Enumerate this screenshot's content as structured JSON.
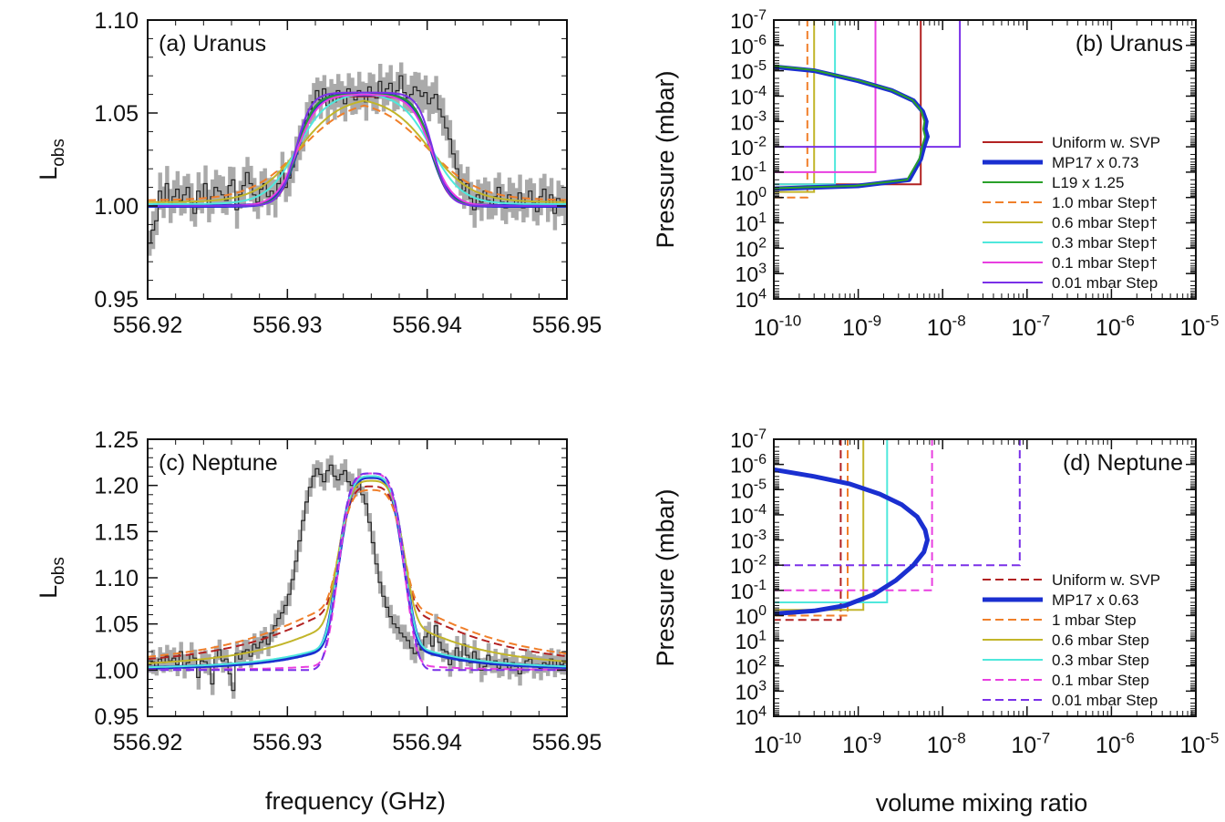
{
  "figure": {
    "xlabel_left": "frequency (GHz)",
    "xlabel_right": "volume mixing ratio"
  },
  "colors": {
    "uniform": "#b22222",
    "mp17": "#1a2fd0",
    "l19": "#2aa02a",
    "step1": "#f07f2a",
    "step06": "#c2b52a",
    "step03": "#4fe8dc",
    "step01": "#e83fe0",
    "step001": "#7a30e8",
    "data": "#aaaaaa",
    "navy": "#101050"
  },
  "chart_data": [
    {
      "id": "a",
      "type": "line",
      "label": "(a) Uranus",
      "ylabel": "L",
      "ylabel_sub": "obs",
      "xlim": [
        556.92,
        556.95
      ],
      "ylim": [
        0.95,
        1.1
      ],
      "xticks": [
        556.92,
        556.93,
        556.94,
        556.95
      ],
      "xtick_labels": [
        "556.92",
        "556.93",
        "556.94",
        "556.95"
      ],
      "yticks": [
        0.95,
        1.0,
        1.05,
        1.1
      ],
      "ytick_labels": [
        "0.95",
        "1.00",
        "1.05",
        "1.10"
      ],
      "data_style": "histogram with grey error bars",
      "center": 556.9355,
      "models": [
        {
          "key": "uniform",
          "color": "#b22222",
          "dash": false,
          "width": 2,
          "peak": 1.059,
          "base": 1.0,
          "halfwidth": 0.0048,
          "sharp": 0.0006
        },
        {
          "key": "mp17",
          "color": "#1a2fd0",
          "dash": false,
          "width": 4,
          "peak": 1.06,
          "base": 1.0,
          "halfwidth": 0.0048,
          "sharp": 0.00065
        },
        {
          "key": "l19",
          "color": "#2aa02a",
          "dash": false,
          "width": 2,
          "peak": 1.06,
          "base": 1.0,
          "halfwidth": 0.0048,
          "sharp": 0.00062
        },
        {
          "key": "step1",
          "color": "#f07f2a",
          "dash": true,
          "width": 2,
          "peak": 1.058,
          "base": 1.003,
          "halfwidth": 0.0046,
          "sharp": 0.0018
        },
        {
          "key": "step06",
          "color": "#c2b52a",
          "dash": false,
          "width": 2,
          "peak": 1.059,
          "base": 1.002,
          "halfwidth": 0.0047,
          "sharp": 0.0015
        },
        {
          "key": "step03",
          "color": "#4fe8dc",
          "dash": false,
          "width": 2,
          "peak": 1.061,
          "base": 1.001,
          "halfwidth": 0.0048,
          "sharp": 0.0011
        },
        {
          "key": "step01",
          "color": "#e83fe0",
          "dash": false,
          "width": 2,
          "peak": 1.06,
          "base": 1.0,
          "halfwidth": 0.0048,
          "sharp": 0.00075
        },
        {
          "key": "step001",
          "color": "#7a30e8",
          "dash": false,
          "width": 2,
          "peak": 1.061,
          "base": 1.0,
          "halfwidth": 0.0049,
          "sharp": 0.00055
        }
      ],
      "observed": {
        "x_start": 556.92,
        "step": 0.00025,
        "y": [
          0.98,
          0.987,
          0.992,
          1.008,
          1.002,
          1.012,
          1.0,
          1.005,
          1.009,
          1.003,
          1.006,
          1.01,
          1.002,
          0.996,
          1.008,
          1.004,
          1.012,
          1.0,
          1.005,
          1.01,
          1.008,
          1.006,
          1.003,
          1.011,
          1.014,
          0.998,
          1.006,
          1.011,
          1.018,
          1.012,
          1.006,
          1.002,
          1.009,
          1.012,
          1.005,
          1.008,
          1.004,
          1.012,
          1.019,
          1.01,
          1.015,
          1.021,
          1.028,
          1.034,
          1.038,
          1.046,
          1.052,
          1.056,
          1.062,
          1.057,
          1.063,
          1.054,
          1.06,
          1.056,
          1.062,
          1.058,
          1.055,
          1.063,
          1.059,
          1.057,
          1.062,
          1.06,
          1.056,
          1.064,
          1.061,
          1.058,
          1.067,
          1.06,
          1.063,
          1.066,
          1.059,
          1.062,
          1.07,
          1.061,
          1.058,
          1.06,
          1.064,
          1.062,
          1.059,
          1.061,
          1.055,
          1.058,
          1.06,
          1.052,
          1.048,
          1.042,
          1.036,
          1.028,
          1.02,
          1.014,
          1.008,
          1.012,
          1.004,
          0.998,
          1.006,
          1.002,
          1.008,
          1.003,
          1.0,
          1.005,
          1.01,
          1.002,
          0.999,
          1.006,
          1.003,
          1.001,
          1.007,
          0.999,
          1.004,
          1.008,
          1.002,
          0.997,
          1.005,
          1.009,
          1.001,
          1.006,
          0.996,
          1.004,
          1.003,
          1.0,
          1.006
        ]
      }
    },
    {
      "id": "b",
      "type": "line",
      "label": "(b) Uranus",
      "ylabel": "Pressure (mbar)",
      "xlog": true,
      "ylog": true,
      "yreverse": true,
      "xlim": [
        1e-10,
        1e-05
      ],
      "ylim": [
        1e-07,
        10000.0
      ],
      "xtick_exponents": [
        "-10",
        "-9",
        "-8",
        "-7",
        "-6",
        "-5"
      ],
      "ytick_exponents": [
        "-7",
        "-6",
        "-5",
        "-4",
        "-3",
        "-2",
        "-1",
        "0",
        "1",
        "2",
        "3",
        "4"
      ],
      "legend_position": "lower-right",
      "legend": [
        {
          "key": "uniform",
          "label": "Uniform w. SVP",
          "color": "#b22222",
          "dash": false,
          "width": 2
        },
        {
          "key": "mp17",
          "label": "MP17 x 0.73",
          "color": "#1a2fd0",
          "dash": false,
          "width": 5
        },
        {
          "key": "l19",
          "label": "L19 x 1.25",
          "color": "#2aa02a",
          "dash": false,
          "width": 2
        },
        {
          "key": "step1",
          "label": "1.0 mbar Step†",
          "color": "#f07f2a",
          "dash": true,
          "width": 2
        },
        {
          "key": "step06",
          "label": "0.6 mbar Step†",
          "color": "#c2b52a",
          "dash": false,
          "width": 2
        },
        {
          "key": "step03",
          "label": "0.3 mbar Step†",
          "color": "#4fe8dc",
          "dash": false,
          "width": 2
        },
        {
          "key": "step01",
          "label": "0.1 mbar Step†",
          "color": "#e83fe0",
          "dash": false,
          "width": 2
        },
        {
          "key": "step001",
          "label": "0.01 mbar Step",
          "color": "#7a30e8",
          "dash": false,
          "width": 2
        }
      ],
      "steps": [
        {
          "key": "uniform",
          "color": "#b22222",
          "dash": false,
          "vmr": 5.5e-09,
          "p": 0.3
        },
        {
          "key": "step1",
          "color": "#f07f2a",
          "dash": true,
          "vmr": 2.5e-10,
          "p": 1.0
        },
        {
          "key": "step06",
          "color": "#c2b52a",
          "dash": false,
          "vmr": 3e-10,
          "p": 0.6
        },
        {
          "key": "step03",
          "color": "#4fe8dc",
          "dash": false,
          "vmr": 5.3e-10,
          "p": 0.3
        },
        {
          "key": "step01",
          "color": "#e83fe0",
          "dash": false,
          "vmr": 1.6e-09,
          "p": 0.1
        },
        {
          "key": "step001",
          "color": "#7a30e8",
          "dash": false,
          "vmr": 1.6e-08,
          "p": 0.01
        }
      ],
      "profiles": [
        {
          "key": "mp17",
          "color": "#1a2fd0",
          "width": 5,
          "dash": false,
          "vmr": [
            1e-10,
            3e-10,
            1e-09,
            2.5e-09,
            4.5e-09,
            5.8e-09,
            6.4e-09,
            6.2e-09,
            6.6e-09,
            6e-09,
            5.5e-09,
            4e-09,
            1e-09,
            1e-10
          ],
          "p": [
            7e-06,
            1e-05,
            2.5e-05,
            6e-05,
            0.00015,
            0.0004,
            0.001,
            0.002,
            0.004,
            0.01,
            0.03,
            0.2,
            0.35,
            0.45
          ]
        },
        {
          "key": "l19",
          "color": "#2aa02a",
          "width": 2,
          "dash": false,
          "vmr": [
            1e-10,
            3e-10,
            1e-09,
            2.5e-09,
            4.4e-09,
            5.6e-09,
            6.1e-09,
            5.9e-09,
            6.2e-09,
            5.7e-09,
            5.3e-09,
            3.8e-09,
            9e-10,
            1e-10
          ],
          "p": [
            6.5e-06,
            9.5e-06,
            2.4e-05,
            5.8e-05,
            0.000145,
            0.00039,
            0.001,
            0.002,
            0.004,
            0.01,
            0.03,
            0.2,
            0.35,
            0.43
          ]
        }
      ]
    },
    {
      "id": "c",
      "type": "line",
      "label": "(c) Neptune",
      "ylabel": "L",
      "ylabel_sub": "obs",
      "xlim": [
        556.92,
        556.95
      ],
      "ylim": [
        0.95,
        1.25
      ],
      "xticks": [
        556.92,
        556.93,
        556.94,
        556.95
      ],
      "xtick_labels": [
        "556.92",
        "556.93",
        "556.94",
        "556.95"
      ],
      "yticks": [
        0.95,
        1.0,
        1.05,
        1.1,
        1.15,
        1.2,
        1.25
      ],
      "ytick_labels": [
        "0.95",
        "1.00",
        "1.05",
        "1.10",
        "1.15",
        "1.20",
        "1.25"
      ],
      "data_style": "histogram with grey error bars",
      "center": 556.936,
      "models": [
        {
          "key": "uniform",
          "color": "#b22222",
          "dash": true,
          "width": 2,
          "peak": 1.199,
          "base": 1.0,
          "gw": 0.0025,
          "lw": 0.007,
          "lamp": 0.075
        },
        {
          "key": "mp17",
          "color": "#1a2fd0",
          "dash": false,
          "width": 4,
          "peak": 1.209,
          "base": 1.0,
          "gw": 0.0026,
          "lw": 0.0045,
          "lamp": 0.035
        },
        {
          "key": "step1",
          "color": "#f07f2a",
          "dash": true,
          "width": 2,
          "peak": 1.195,
          "base": 1.0,
          "gw": 0.0025,
          "lw": 0.0075,
          "lamp": 0.08
        },
        {
          "key": "step06",
          "color": "#c2b52a",
          "dash": false,
          "width": 2,
          "peak": 1.205,
          "base": 1.0,
          "gw": 0.0026,
          "lw": 0.006,
          "lamp": 0.06
        },
        {
          "key": "step03",
          "color": "#4fe8dc",
          "dash": false,
          "width": 2,
          "peak": 1.21,
          "base": 1.0,
          "gw": 0.0026,
          "lw": 0.005,
          "lamp": 0.035
        },
        {
          "key": "step01",
          "color": "#e83fe0",
          "dash": true,
          "width": 2,
          "peak": 1.213,
          "base": 1.0,
          "gw": 0.0026,
          "lw": 0.003,
          "lamp": 0.012
        },
        {
          "key": "step001",
          "color": "#7a30e8",
          "dash": true,
          "width": 2,
          "peak": 1.213,
          "base": 1.0,
          "gw": 0.0027,
          "lw": 0.002,
          "lamp": 0.0
        }
      ],
      "observed": {
        "x_start": 556.92,
        "step": 0.00025,
        "y": [
          1.006,
          1.009,
          1.004,
          1.012,
          1.008,
          1.015,
          1.01,
          1.013,
          1.006,
          1.02,
          1.004,
          1.008,
          1.017,
          1.013,
          0.992,
          1.01,
          1.009,
          1.006,
          0.985,
          1.014,
          1.022,
          1.01,
          1.012,
          0.996,
          0.978,
          1.018,
          1.012,
          1.02,
          1.022,
          1.015,
          1.028,
          1.024,
          1.03,
          1.036,
          1.028,
          1.04,
          1.048,
          1.056,
          1.062,
          1.07,
          1.082,
          1.098,
          1.118,
          1.14,
          1.162,
          1.182,
          1.198,
          1.21,
          1.218,
          1.212,
          1.204,
          1.216,
          1.222,
          1.21,
          1.206,
          1.212,
          1.216,
          1.204,
          1.2,
          1.198,
          1.205,
          1.19,
          1.18,
          1.16,
          1.138,
          1.115,
          1.095,
          1.08,
          1.068,
          1.058,
          1.05,
          1.046,
          1.04,
          1.036,
          1.032,
          1.024,
          1.018,
          1.028,
          1.022,
          1.036,
          1.04,
          1.026,
          1.048,
          1.03,
          1.022,
          1.02,
          1.006,
          1.012,
          1.024,
          1.01,
          1.028,
          1.016,
          1.008,
          1.02,
          1.012,
          1.0,
          1.004,
          1.016,
          1.006,
          1.01,
          1.002,
          1.006,
          1.012,
          1.002,
          1.008,
          1.004,
          0.996,
          1.006,
          1.01,
          1.012,
          1.004,
          1.006,
          1.002,
          1.008,
          1.006,
          1.012,
          1.004,
          1.01,
          1.006,
          1.008,
          1.004
        ]
      }
    },
    {
      "id": "d",
      "type": "line",
      "label": "(d) Neptune",
      "ylabel": "Pressure (mbar)",
      "xlog": true,
      "ylog": true,
      "yreverse": true,
      "xlim": [
        1e-10,
        1e-05
      ],
      "ylim": [
        1e-07,
        10000.0
      ],
      "xtick_exponents": [
        "-10",
        "-9",
        "-8",
        "-7",
        "-6",
        "-5"
      ],
      "ytick_exponents": [
        "-7",
        "-6",
        "-5",
        "-4",
        "-3",
        "-2",
        "-1",
        "0",
        "1",
        "2",
        "3",
        "4"
      ],
      "legend_position": "lower-right",
      "legend": [
        {
          "key": "uniform",
          "label": "Uniform w. SVP",
          "color": "#b22222",
          "dash": true,
          "width": 2
        },
        {
          "key": "mp17",
          "label": "MP17 x 0.63",
          "color": "#1a2fd0",
          "dash": false,
          "width": 5
        },
        {
          "key": "step1",
          "label": "1 mbar Step",
          "color": "#f07f2a",
          "dash": true,
          "width": 2
        },
        {
          "key": "step06",
          "label": "0.6 mbar Step",
          "color": "#c2b52a",
          "dash": false,
          "width": 2
        },
        {
          "key": "step03",
          "label": "0.3 mbar Step",
          "color": "#4fe8dc",
          "dash": false,
          "width": 2
        },
        {
          "key": "step01",
          "label": "0.1 mbar Step",
          "color": "#e83fe0",
          "dash": true,
          "width": 2
        },
        {
          "key": "step001",
          "label": "0.01 mbar Step",
          "color": "#7a30e8",
          "dash": true,
          "width": 2
        }
      ],
      "steps": [
        {
          "key": "uniform",
          "color": "#b22222",
          "dash": true,
          "vmr": 6.2e-10,
          "p": 1.5
        },
        {
          "key": "step1",
          "color": "#f07f2a",
          "dash": true,
          "vmr": 7.5e-10,
          "p": 1.0
        },
        {
          "key": "step06",
          "color": "#c2b52a",
          "dash": false,
          "vmr": 1.15e-09,
          "p": 0.6
        },
        {
          "key": "step03",
          "color": "#4fe8dc",
          "dash": false,
          "vmr": 2.2e-09,
          "p": 0.3
        },
        {
          "key": "step01",
          "color": "#e83fe0",
          "dash": true,
          "vmr": 7.5e-09,
          "p": 0.1
        },
        {
          "key": "step001",
          "color": "#7a30e8",
          "dash": true,
          "vmr": 8.2e-08,
          "p": 0.01
        }
      ],
      "profiles": [
        {
          "key": "mp17",
          "color": "#1a2fd0",
          "width": 5,
          "dash": false,
          "vmr": [
            1e-10,
            3e-10,
            8e-10,
            1.8e-09,
            3.3e-09,
            5e-09,
            6.2e-09,
            6.6e-09,
            6e-09,
            4.5e-09,
            2.8e-09,
            1.5e-09,
            7e-10,
            3e-10,
            1e-10
          ],
          "p": [
            1.6e-06,
            3e-06,
            6e-06,
            1.5e-05,
            4e-05,
            0.00012,
            0.0004,
            0.001,
            0.003,
            0.01,
            0.04,
            0.15,
            0.4,
            0.65,
            0.85
          ]
        }
      ]
    }
  ]
}
